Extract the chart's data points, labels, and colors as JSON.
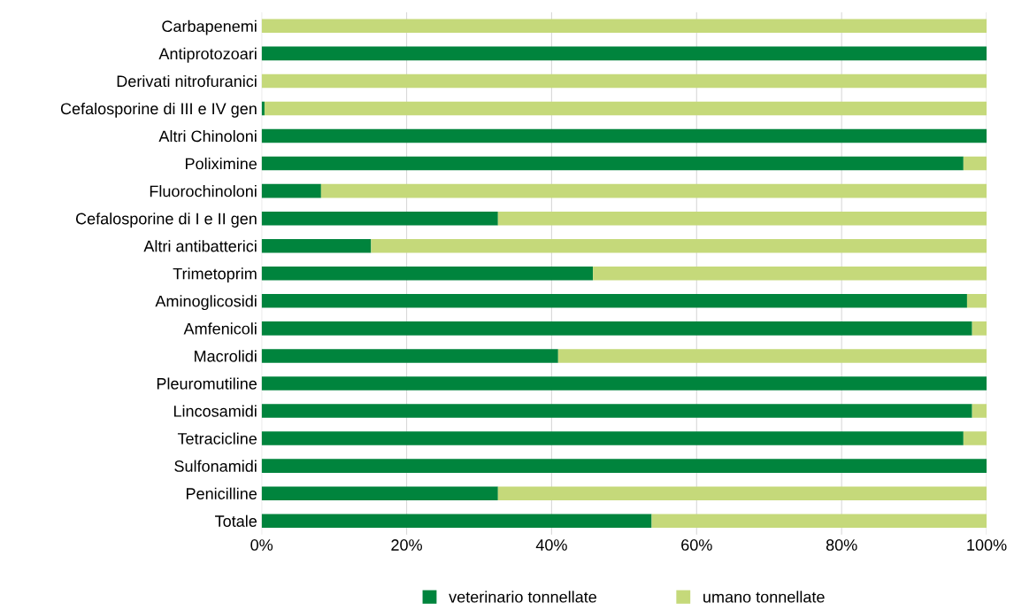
{
  "chart_data": {
    "type": "bar",
    "orientation": "horizontal",
    "stacked": true,
    "categories": [
      "Carbapenemi",
      "Antiprotozoari",
      "Derivati nitrofuranici",
      "Cefalosporine di III e IV gen",
      "Altri Chinoloni",
      "Poliximine",
      "Fluorochinoloni",
      "Cefalosporine di I e II gen",
      "Altri antibatterici",
      "Trimetoprim",
      "Aminoglicosidi",
      "Amfenicoli",
      "Macrolidi",
      "Pleuromutiline",
      "Lincosamidi",
      "Tetracicline",
      "Sulfonamidi",
      "Penicilline",
      "Totale"
    ],
    "series": [
      {
        "name": "veterinario tonnellate",
        "color": "#00843d",
        "values": [
          0,
          100,
          0,
          0.4,
          100,
          96.8,
          8.2,
          32.6,
          15.1,
          45.7,
          97.3,
          98.0,
          40.9,
          100,
          98.0,
          96.8,
          100,
          32.6,
          53.8
        ]
      },
      {
        "name": "umano tonnellate",
        "color": "#c5d97a",
        "values": [
          100,
          0,
          100,
          99.6,
          0,
          3.2,
          91.8,
          67.4,
          84.9,
          54.3,
          2.7,
          2.0,
          59.1,
          0,
          2.0,
          3.2,
          0,
          67.4,
          46.2
        ]
      }
    ],
    "xlim": [
      0,
      100
    ],
    "xticks": [
      {
        "value": 0,
        "label": "0%"
      },
      {
        "value": 20,
        "label": "20%"
      },
      {
        "value": 40,
        "label": "40%"
      },
      {
        "value": 60,
        "label": "60%"
      },
      {
        "value": 80,
        "label": "80%"
      },
      {
        "value": 100,
        "label": "100%"
      }
    ],
    "grid": "x",
    "legend": "bottom"
  }
}
